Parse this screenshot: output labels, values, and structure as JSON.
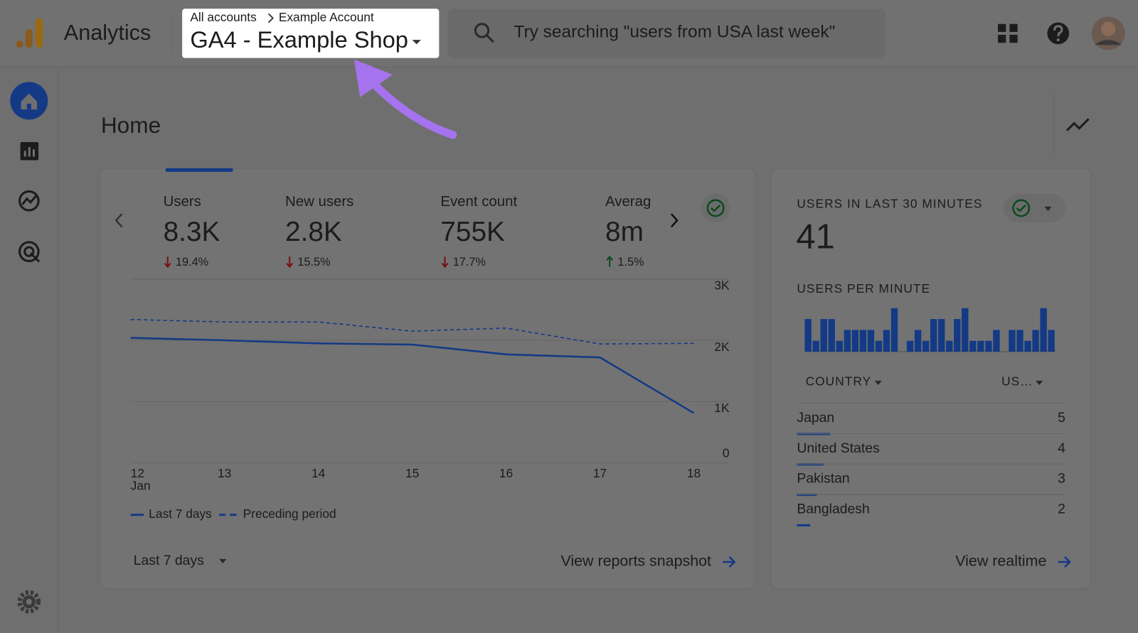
{
  "header": {
    "app_name": "Analytics",
    "breadcrumb": [
      "All accounts",
      "Example Account"
    ],
    "property": "GA4 - Example Shop",
    "search_placeholder": "Try searching \"users from USA last week\""
  },
  "page_title": "Home",
  "metrics": [
    {
      "label": "Users",
      "value": "8.3K",
      "change": "19.4%",
      "direction": "down"
    },
    {
      "label": "New users",
      "value": "2.8K",
      "change": "15.5%",
      "direction": "down"
    },
    {
      "label": "Event count",
      "value": "755K",
      "change": "17.7%",
      "direction": "down"
    },
    {
      "label": "Averag",
      "value": "8m",
      "change": "1.5%",
      "direction": "up"
    }
  ],
  "chart": {
    "type": "line",
    "categories": [
      "12",
      "13",
      "14",
      "15",
      "16",
      "17",
      "18"
    ],
    "month_label": "Jan",
    "series": [
      {
        "name": "Last 7 days",
        "color": "#143a86",
        "dashed": false,
        "values": [
          2040,
          2000,
          1950,
          1930,
          1770,
          1720,
          810
        ]
      },
      {
        "name": "Preceding period",
        "color": "#143a86",
        "dashed": true,
        "values": [
          2340,
          2300,
          2300,
          2150,
          2200,
          1940,
          1950
        ]
      }
    ],
    "ylim": [
      0,
      3000
    ],
    "yticks": [
      {
        "value": 0,
        "label": "0"
      },
      {
        "value": 1000,
        "label": "1K"
      },
      {
        "value": 2000,
        "label": "2K"
      },
      {
        "value": 3000,
        "label": "3K"
      }
    ],
    "grid": true
  },
  "date_range": "Last 7 days",
  "reports_link": "View reports snapshot",
  "realtime": {
    "title": "USERS IN LAST 30 MINUTES",
    "total": "41",
    "per_minute_title": "USERS PER MINUTE",
    "users_per_minute": {
      "type": "bar",
      "color": "#143a86",
      "ylim": [
        0,
        4
      ],
      "values": [
        3,
        1,
        3,
        3,
        1,
        2,
        2,
        2,
        2,
        1,
        2,
        4,
        0,
        1,
        2,
        1,
        3,
        3,
        1,
        3,
        4,
        1,
        1,
        1,
        2,
        0,
        2,
        2,
        1,
        2,
        4,
        2
      ]
    },
    "table": {
      "columns": [
        "COUNTRY",
        "US…"
      ],
      "bar_color": "#143a86",
      "rows": [
        {
          "country": "Japan",
          "users": 5
        },
        {
          "country": "United States",
          "users": 4
        },
        {
          "country": "Pakistan",
          "users": 3
        },
        {
          "country": "Bangladesh",
          "users": 2
        }
      ]
    },
    "link": "View realtime"
  }
}
